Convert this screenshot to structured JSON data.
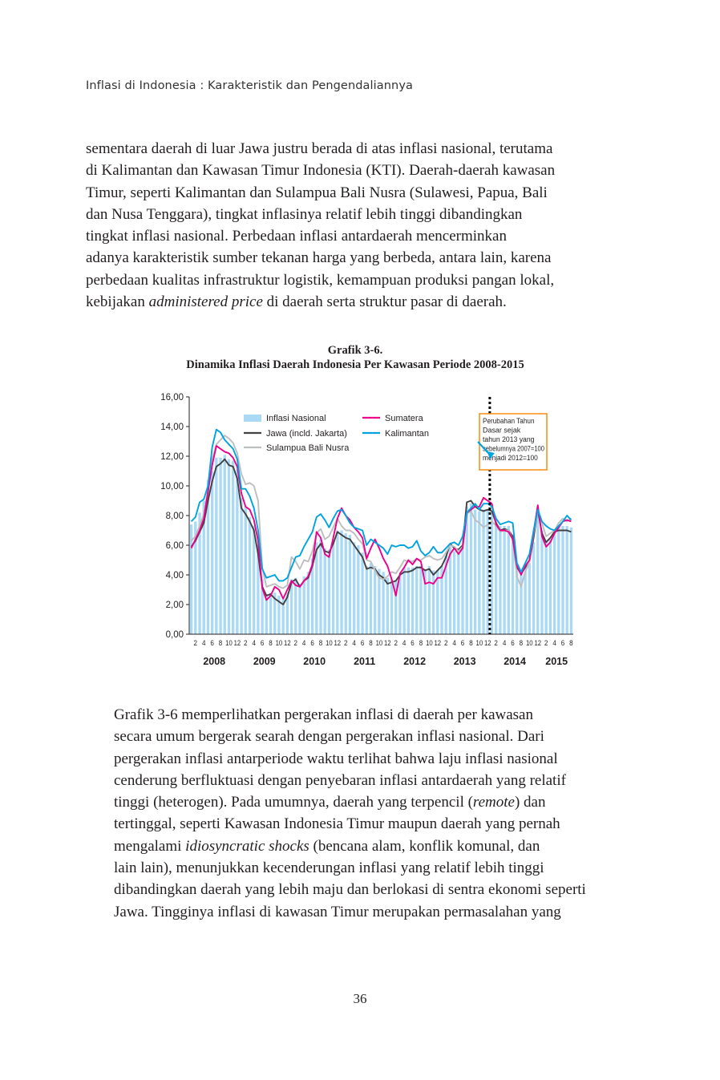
{
  "running_head": "Inflasi di Indonesia : Karakteristik dan Pengendaliannya",
  "paragraph1": {
    "lines": [
      "sementara daerah di luar Jawa justru berada di atas inflasi nasional, terutama",
      "di Kalimantan dan Kawasan Timur Indonesia (KTI). Daerah-daerah kawasan",
      "Timur, seperti Kalimantan dan Sulampua Bali Nusra (Sulawesi, Papua, Bali",
      "dan Nusa Tenggara), tingkat inflasinya relatif lebih tinggi dibandingkan",
      "tingkat inflasi nasional. Perbedaan inflasi antardaerah mencerminkan",
      "adanya karakteristik sumber tekanan harga yang berbeda, antara lain, karena",
      "perbedaan kualitas infrastruktur logistik, kemampuan produksi pangan lokal,"
    ],
    "last_line_before": "kebijakan ",
    "last_line_italic": "administered price",
    "last_line_after": " di daerah serta struktur pasar di daerah."
  },
  "figure": {
    "label": "Grafik 3-6.",
    "title": "Dinamika Inflasi Daerah Indonesia Per Kawasan Periode 2008-2015"
  },
  "chart_data": {
    "type": "line",
    "title": "Dinamika Inflasi Daerah Indonesia Per Kawasan Periode 2008-2015",
    "ylim": [
      0,
      16
    ],
    "y_ticks": [
      "0,00",
      "2,00",
      "4,00",
      "6,00",
      "8,00",
      "10,00",
      "12,00",
      "14,00",
      "16,00"
    ],
    "x_tick_labels": [
      "2",
      "4",
      "6",
      "8",
      "10",
      "12",
      "2",
      "4",
      "6",
      "8",
      "10",
      "12",
      "2",
      "4",
      "6",
      "8",
      "10",
      "12",
      "2",
      "4",
      "6",
      "8",
      "10",
      "12",
      "2",
      "4",
      "6",
      "8",
      "10",
      "12",
      "2",
      "4",
      "6",
      "8",
      "10",
      "12",
      "2",
      "4",
      "6",
      "8",
      "10",
      "12",
      "2",
      "4",
      "6",
      "8"
    ],
    "years": [
      "2008",
      "2009",
      "2010",
      "2011",
      "2012",
      "2013",
      "2014",
      "2015"
    ],
    "months_per_year": 12,
    "start": "2008-01",
    "bar_series": {
      "name": "Inflasi Nasional",
      "color": "#a9d9f5",
      "values": [
        7.4,
        7.6,
        8.2,
        9.0,
        10.4,
        11.0,
        11.9,
        11.9,
        12.1,
        11.8,
        11.7,
        11.1,
        9.2,
        8.6,
        7.9,
        7.3,
        6.0,
        3.7,
        2.7,
        2.8,
        2.8,
        2.6,
        2.4,
        2.8,
        3.7,
        3.8,
        3.4,
        3.9,
        4.2,
        5.1,
        6.2,
        6.4,
        5.8,
        5.7,
        6.3,
        7.0,
        7.0,
        6.8,
        6.7,
        6.2,
        6.0,
        5.5,
        4.6,
        4.8,
        4.6,
        4.4,
        4.2,
        3.8,
        3.7,
        3.6,
        4.0,
        4.5,
        4.5,
        4.5,
        4.6,
        4.6,
        4.3,
        4.6,
        4.3,
        4.3,
        4.6,
        5.3,
        5.9,
        5.6,
        5.5,
        5.9,
        8.6,
        8.8,
        8.4,
        8.3,
        8.4,
        8.4,
        8.2,
        7.8,
        7.3,
        7.3,
        7.3,
        6.7,
        4.5,
        4.0,
        4.5,
        4.8,
        6.2,
        8.4,
        7.0,
        6.3,
        6.4,
        6.8,
        7.2,
        7.3,
        7.3,
        7.2
      ]
    },
    "series": [
      {
        "name": "Jawa (incld. Jakarta)",
        "color": "#414042",
        "values": [
          5.9,
          6.3,
          6.9,
          7.5,
          9.0,
          10.3,
          11.3,
          11.5,
          11.8,
          11.4,
          11.3,
          10.5,
          8.5,
          8.1,
          7.6,
          7.0,
          5.4,
          3.2,
          2.6,
          2.7,
          2.4,
          2.2,
          2.0,
          2.5,
          3.5,
          3.7,
          3.2,
          3.6,
          3.8,
          4.6,
          5.7,
          6.1,
          5.6,
          5.5,
          6.1,
          6.9,
          6.7,
          6.5,
          6.4,
          6.0,
          5.6,
          5.2,
          4.4,
          4.5,
          4.4,
          4.0,
          3.8,
          3.4,
          3.5,
          3.6,
          4.0,
          4.2,
          4.2,
          4.3,
          4.5,
          4.5,
          4.3,
          4.4,
          4.0,
          4.3,
          4.6,
          5.2,
          6.1,
          5.8,
          5.7,
          6.0,
          8.9,
          9.0,
          8.6,
          8.4,
          8.3,
          8.4,
          8.3,
          7.5,
          7.0,
          7.1,
          7.0,
          6.6,
          4.5,
          4.1,
          4.5,
          4.9,
          6.5,
          8.4,
          6.8,
          6.2,
          6.5,
          6.9,
          7.0,
          7.0,
          7.0,
          6.9
        ]
      },
      {
        "name": "Sulampua Bali Nusra",
        "color": "#bcbec0",
        "values": [
          6.3,
          6.6,
          7.3,
          8.1,
          9.8,
          11.8,
          12.8,
          13.1,
          13.4,
          13.2,
          12.9,
          12.2,
          10.8,
          10.1,
          10.2,
          10.0,
          9.0,
          4.5,
          3.2,
          3.3,
          3.4,
          3.2,
          3.1,
          3.3,
          5.2,
          4.9,
          4.4,
          5.0,
          4.9,
          5.6,
          6.8,
          7.1,
          6.4,
          6.6,
          7.2,
          7.8,
          7.3,
          7.0,
          7.0,
          6.8,
          6.4,
          6.1,
          5.0,
          4.9,
          4.3,
          3.8,
          3.7,
          3.9,
          4.2,
          4.1,
          4.5,
          5.0,
          4.9,
          4.9,
          5.1,
          5.0,
          5.2,
          5.3,
          5.1,
          5.0,
          5.1,
          5.5,
          6.0,
          5.9,
          5.6,
          5.9,
          8.1,
          8.3,
          7.7,
          7.5,
          7.2,
          7.4,
          7.6,
          7.3,
          6.9,
          7.0,
          7.0,
          6.4,
          3.9,
          3.2,
          4.2,
          4.9,
          6.8,
          8.3,
          7.5,
          6.6,
          6.8,
          7.0,
          7.5,
          7.8,
          7.6,
          7.8
        ]
      },
      {
        "name": "Sumatera",
        "color": "#ec008c",
        "values": [
          5.8,
          6.4,
          7.0,
          7.8,
          9.6,
          11.4,
          12.7,
          12.5,
          12.3,
          12.2,
          11.9,
          11.3,
          9.5,
          8.6,
          8.4,
          7.7,
          6.3,
          3.1,
          2.3,
          2.6,
          3.2,
          3.0,
          2.4,
          3.0,
          3.6,
          3.3,
          3.2,
          3.6,
          3.9,
          4.7,
          6.9,
          6.5,
          5.4,
          5.2,
          6.5,
          7.8,
          8.5,
          8.0,
          7.7,
          7.2,
          6.9,
          6.5,
          5.1,
          5.8,
          6.4,
          5.8,
          5.1,
          4.6,
          3.7,
          2.6,
          4.1,
          4.5,
          5.0,
          4.7,
          5.1,
          4.9,
          3.4,
          3.5,
          3.4,
          3.8,
          3.8,
          4.6,
          5.4,
          5.8,
          5.4,
          5.8,
          8.2,
          8.4,
          8.6,
          8.6,
          9.2,
          9.0,
          8.8,
          7.4,
          7.0,
          7.0,
          6.9,
          6.4,
          4.6,
          4.0,
          4.6,
          5.0,
          6.9,
          8.7,
          6.6,
          5.9,
          6.2,
          6.8,
          7.2,
          7.6,
          7.7,
          7.6
        ]
      },
      {
        "name": "Kalimantan",
        "color": "#00a3e0",
        "values": [
          7.6,
          7.9,
          8.9,
          9.1,
          10.0,
          12.6,
          13.8,
          13.6,
          13.1,
          12.8,
          12.5,
          11.8,
          9.8,
          9.8,
          9.3,
          8.5,
          7.0,
          4.4,
          3.8,
          3.9,
          4.0,
          3.6,
          3.6,
          3.8,
          4.5,
          5.2,
          5.3,
          5.9,
          6.4,
          6.9,
          7.9,
          8.1,
          7.7,
          7.2,
          7.8,
          8.3,
          8.4,
          8.0,
          7.5,
          7.2,
          7.1,
          7.0,
          6.0,
          6.4,
          6.2,
          6.0,
          5.8,
          5.4,
          6.0,
          5.9,
          6.0,
          6.0,
          5.8,
          5.9,
          6.3,
          5.6,
          5.3,
          5.5,
          5.9,
          5.5,
          5.5,
          5.8,
          6.1,
          6.2,
          6.0,
          6.6,
          8.2,
          8.5,
          8.8,
          8.4,
          8.8,
          8.8,
          8.6,
          7.8,
          7.4,
          7.5,
          7.6,
          7.5,
          4.8,
          4.2,
          4.8,
          5.4,
          7.0,
          8.4,
          7.6,
          7.3,
          7.1,
          7.0,
          7.3,
          7.6,
          8.0,
          7.7
        ]
      }
    ],
    "legend": {
      "placement": "top-left",
      "entries": [
        "Inflasi Nasional",
        "Jawa (incld. Jakarta)",
        "Sulampua Bali Nusra",
        "Sumatera",
        "Kalimantan"
      ]
    },
    "annotation": {
      "text_lines": [
        "Perubahan Tahun",
        "Dasar sejak",
        "tahun 2013 yang",
        "sebelumnya 2007=100",
        "menjadi 2012=100"
      ],
      "marker_index": 71.5,
      "border_color": "#f7941d",
      "arrow_color": "#00a3e0"
    },
    "grid": false
  },
  "paragraph2": {
    "line1": "Grafik 3-6 memperlihatkan pergerakan inflasi di daerah per kawasan",
    "line2": "secara umum bergerak searah dengan pergerakan inflasi nasional. Dari",
    "line3": "pergerakan inflasi antarperiode waktu terlihat bahwa laju inflasi nasional",
    "line4": "cenderung berfluktuasi dengan penyebaran inflasi antardaerah yang relatif",
    "line5_before": "tinggi (heterogen). Pada umumnya, daerah yang terpencil (",
    "line5_italic": "remote",
    "line5_after": ") dan",
    "line6": "tertinggal, seperti Kawasan Indonesia Timur maupun daerah yang pernah",
    "line7_before": "mengalami ",
    "line7_italic": "idiosyncratic shocks",
    "line7_after": " (bencana alam, konflik komunal, dan",
    "line8": "lain lain), menunjukkan kecenderungan inflasi yang relatif lebih tinggi",
    "line9": "dibandingkan daerah yang lebih maju dan berlokasi di sentra ekonomi seperti",
    "line10": "Jawa. Tingginya inflasi di kawasan Timur merupakan permasalahan yang"
  },
  "page_number": "36"
}
